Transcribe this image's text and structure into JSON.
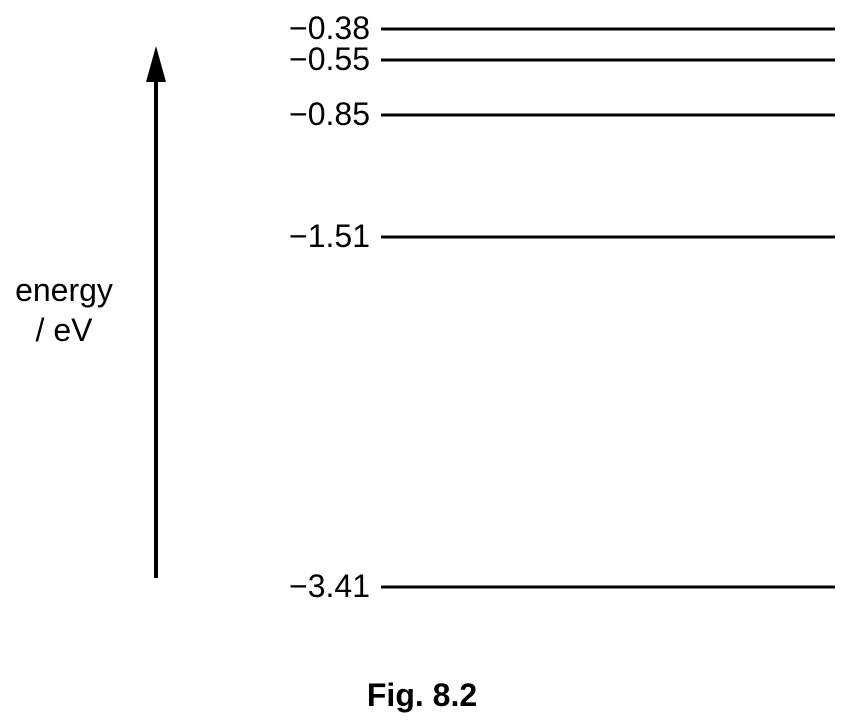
{
  "axis": {
    "label_line1": "energy",
    "label_line2": "/ eV",
    "direction": "up"
  },
  "levels": [
    {
      "label": "−0.38",
      "value": -0.38
    },
    {
      "label": "−0.55",
      "value": -0.55
    },
    {
      "label": "−0.85",
      "value": -0.85
    },
    {
      "label": "−1.51",
      "value": -1.51
    },
    {
      "label": "−3.41",
      "value": -3.41
    }
  ],
  "caption": "Fig. 8.2"
}
